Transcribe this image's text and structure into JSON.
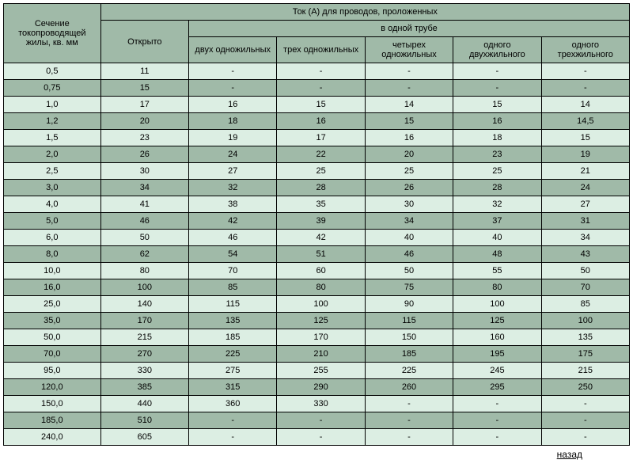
{
  "colors": {
    "header_bg": "#a0baa8",
    "row_light": "#dceee3",
    "row_dark": "#a0baa8",
    "border": "#000000",
    "text": "#000000"
  },
  "fonts": {
    "family": "Arial, sans-serif",
    "header_size": 11,
    "cell_size": 11
  },
  "header": {
    "section": "Сечение токопроводящей жилы, кв. мм",
    "top": "Ток (А) для проводов, проложенных",
    "open": "Открыто",
    "tube": "в одной трубе",
    "cols": [
      "двух одножильных",
      "трех одножильных",
      "четырех одножильных",
      "одного двухжильного",
      "одного трехжильного"
    ]
  },
  "rows": [
    {
      "label": "0,5",
      "vals": [
        "11",
        "-",
        "-",
        "-",
        "-",
        "-"
      ]
    },
    {
      "label": "0,75",
      "vals": [
        "15",
        "-",
        "-",
        "-",
        "-",
        "-"
      ]
    },
    {
      "label": "1,0",
      "vals": [
        "17",
        "16",
        "15",
        "14",
        "15",
        "14"
      ]
    },
    {
      "label": "1,2",
      "vals": [
        "20",
        "18",
        "16",
        "15",
        "16",
        "14,5"
      ]
    },
    {
      "label": "1,5",
      "vals": [
        "23",
        "19",
        "17",
        "16",
        "18",
        "15"
      ]
    },
    {
      "label": "2,0",
      "vals": [
        "26",
        "24",
        "22",
        "20",
        "23",
        "19"
      ]
    },
    {
      "label": "2,5",
      "vals": [
        "30",
        "27",
        "25",
        "25",
        "25",
        "21"
      ]
    },
    {
      "label": "3,0",
      "vals": [
        "34",
        "32",
        "28",
        "26",
        "28",
        "24"
      ]
    },
    {
      "label": "4,0",
      "vals": [
        "41",
        "38",
        "35",
        "30",
        "32",
        "27"
      ]
    },
    {
      "label": "5,0",
      "vals": [
        "46",
        "42",
        "39",
        "34",
        "37",
        "31"
      ]
    },
    {
      "label": "6,0",
      "vals": [
        "50",
        "46",
        "42",
        "40",
        "40",
        "34"
      ]
    },
    {
      "label": "8,0",
      "vals": [
        "62",
        "54",
        "51",
        "46",
        "48",
        "43"
      ]
    },
    {
      "label": "10,0",
      "vals": [
        "80",
        "70",
        "60",
        "50",
        "55",
        "50"
      ]
    },
    {
      "label": "16,0",
      "vals": [
        "100",
        "85",
        "80",
        "75",
        "80",
        "70"
      ]
    },
    {
      "label": "25,0",
      "vals": [
        "140",
        "115",
        "100",
        "90",
        "100",
        "85"
      ]
    },
    {
      "label": "35,0",
      "vals": [
        "170",
        "135",
        "125",
        "115",
        "125",
        "100"
      ]
    },
    {
      "label": "50,0",
      "vals": [
        "215",
        "185",
        "170",
        "150",
        "160",
        "135"
      ]
    },
    {
      "label": "70,0",
      "vals": [
        "270",
        "225",
        "210",
        "185",
        "195",
        "175"
      ]
    },
    {
      "label": "95,0",
      "vals": [
        "330",
        "275",
        "255",
        "225",
        "245",
        "215"
      ]
    },
    {
      "label": "120,0",
      "vals": [
        "385",
        "315",
        "290",
        "260",
        "295",
        "250"
      ]
    },
    {
      "label": "150,0",
      "vals": [
        "440",
        "360",
        "330",
        "-",
        "-",
        "-"
      ]
    },
    {
      "label": "185,0",
      "vals": [
        "510",
        "-",
        "-",
        "-",
        "-",
        "-"
      ]
    },
    {
      "label": "240,0",
      "vals": [
        "605",
        "-",
        "-",
        "-",
        "-",
        "-"
      ]
    }
  ],
  "footer": {
    "back": "назад"
  }
}
